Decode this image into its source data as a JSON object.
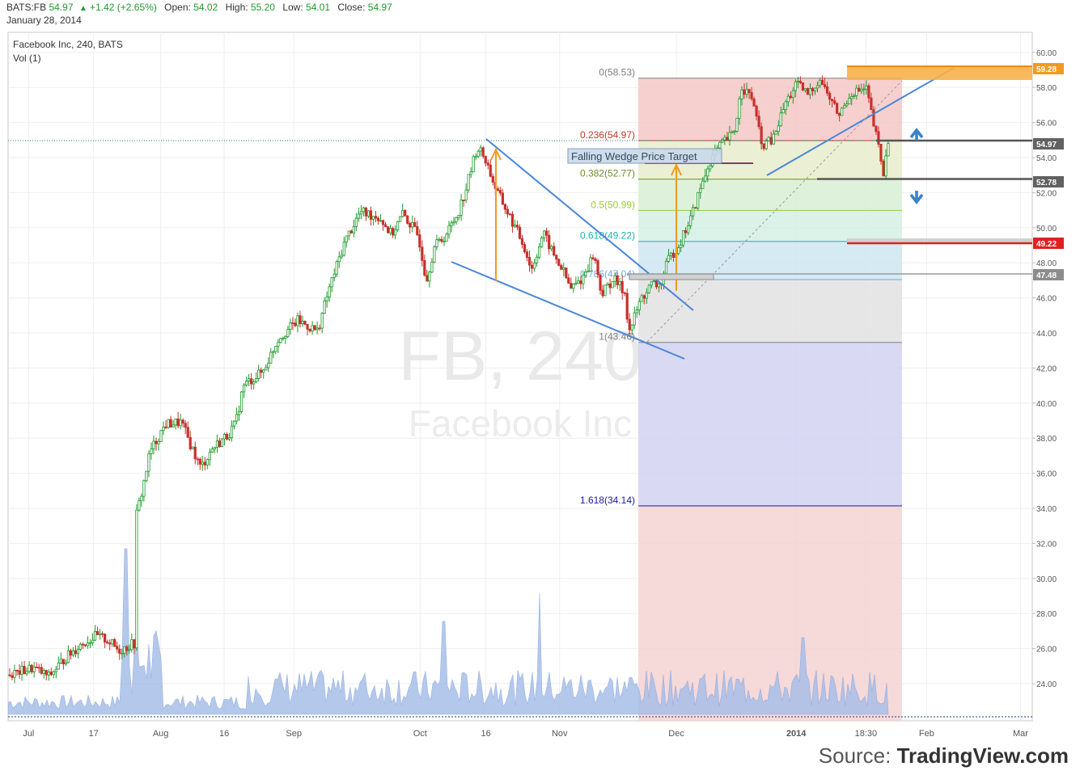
{
  "header": {
    "symbol": "BATS:FB",
    "last": "54.97",
    "change": "+1.42 (+2.65%)",
    "open_label": "Open:",
    "open": "54.02",
    "high_label": "High:",
    "high": "55.20",
    "low_label": "Low:",
    "low": "54.01",
    "close_label": "Close:",
    "close": "54.97",
    "date": "January 28, 2014"
  },
  "colors": {
    "up": "#1d9a2b",
    "down": "#c8302a",
    "trendline": "#4a86d8",
    "arrow": "#f29a1f",
    "volume": "#a8bfe8",
    "price_label_gray": "#616161",
    "price_label_red": "#e02020",
    "price_label_orange": "#f39a1f"
  },
  "source": {
    "prefix": "Source: ",
    "brand": "TradingView.com"
  },
  "chart_data": {
    "type": "candlestick",
    "title": "Facebook Inc, 240, BATS",
    "indicator": "Vol (1)",
    "watermark_symbol": "FB, 240",
    "watermark_name": "Facebook Inc",
    "ylim": [
      22,
      61
    ],
    "y_ticks": [
      "60.00",
      "58.00",
      "56.00",
      "54.00",
      "52.00",
      "50.00",
      "48.00",
      "46.00",
      "44.00",
      "42.00",
      "40.00",
      "38.00",
      "36.00",
      "34.00",
      "32.00",
      "30.00",
      "28.00",
      "26.00",
      "24.00"
    ],
    "x_ticks": [
      {
        "label": "Jul",
        "t": 0.02
      },
      {
        "label": "17",
        "t": 0.0835
      },
      {
        "label": "Aug",
        "t": 0.149
      },
      {
        "label": "16",
        "t": 0.211
      },
      {
        "label": "Sep",
        "t": 0.279
      },
      {
        "label": "Oct",
        "t": 0.4023
      },
      {
        "label": "16",
        "t": 0.4665
      },
      {
        "label": "Nov",
        "t": 0.5385
      },
      {
        "label": "Dec",
        "t": 0.6525
      },
      {
        "label": "2014",
        "t": 0.7695
      },
      {
        "label": "18:30",
        "t": 0.8376
      },
      {
        "label": "Feb",
        "t": 0.8968
      },
      {
        "label": "Mar",
        "t": 0.9885
      }
    ],
    "price_path": [
      [
        0.0,
        24.5
      ],
      [
        0.03,
        24.9
      ],
      [
        0.05,
        24.4
      ],
      [
        0.07,
        25.4
      ],
      [
        0.09,
        26.2
      ],
      [
        0.11,
        26.7
      ],
      [
        0.125,
        26.5
      ],
      [
        0.14,
        25.9
      ],
      [
        0.16,
        26.3
      ],
      [
        0.162,
        33.5
      ],
      [
        0.17,
        35.0
      ],
      [
        0.18,
        37.2
      ],
      [
        0.2,
        38.8
      ],
      [
        0.22,
        38.9
      ],
      [
        0.245,
        36.3
      ],
      [
        0.26,
        37.4
      ],
      [
        0.28,
        38.2
      ],
      [
        0.29,
        38.8
      ],
      [
        0.3,
        41.0
      ],
      [
        0.325,
        41.8
      ],
      [
        0.345,
        43.7
      ],
      [
        0.37,
        44.7
      ],
      [
        0.395,
        44.1
      ],
      [
        0.41,
        46.5
      ],
      [
        0.43,
        49.2
      ],
      [
        0.45,
        50.9
      ],
      [
        0.475,
        50.6
      ],
      [
        0.49,
        49.6
      ],
      [
        0.505,
        50.8
      ],
      [
        0.525,
        49.5
      ],
      [
        0.535,
        47.0
      ],
      [
        0.545,
        48.9
      ],
      [
        0.56,
        49.6
      ],
      [
        0.575,
        50.8
      ],
      [
        0.585,
        52.1
      ],
      [
        0.6,
        54.6
      ],
      [
        0.61,
        54.0
      ],
      [
        0.625,
        52.1
      ],
      [
        0.64,
        50.8
      ],
      [
        0.66,
        49.0
      ],
      [
        0.67,
        47.6
      ],
      [
        0.685,
        49.7
      ],
      [
        0.7,
        48.3
      ],
      [
        0.71,
        47.6
      ],
      [
        0.72,
        46.5
      ],
      [
        0.735,
        47.1
      ],
      [
        0.75,
        48.5
      ],
      [
        0.76,
        46.2
      ],
      [
        0.775,
        47.1
      ],
      [
        0.79,
        46.3
      ],
      [
        0.795,
        44.0
      ],
      [
        0.81,
        45.9
      ],
      [
        0.825,
        46.8
      ],
      [
        0.835,
        46.7
      ],
      [
        0.845,
        48.1
      ],
      [
        0.86,
        49.1
      ],
      [
        0.875,
        50.6
      ],
      [
        0.885,
        52.0
      ],
      [
        0.9,
        53.9
      ],
      [
        0.915,
        54.8
      ],
      [
        0.93,
        55.4
      ],
      [
        0.94,
        58.1
      ],
      [
        0.955,
        57.2
      ],
      [
        0.965,
        54.7
      ],
      [
        0.98,
        55.0
      ],
      [
        0.995,
        57.0
      ],
      [
        1.01,
        58.2
      ],
      [
        1.025,
        57.6
      ],
      [
        1.04,
        58.5
      ],
      [
        1.055,
        57.2
      ],
      [
        1.065,
        56.4
      ],
      [
        1.08,
        57.7
      ],
      [
        1.1,
        57.9
      ],
      [
        1.108,
        56.1
      ],
      [
        1.115,
        54.7
      ],
      [
        1.122,
        53.0
      ],
      [
        1.128,
        54.97
      ]
    ],
    "fib_levels": [
      {
        "ratio": "0",
        "label": "0(58.53)",
        "price": 58.53,
        "fill": "#f4c7c7"
      },
      {
        "ratio": "0.236",
        "label": "0.236(54.97)",
        "price": 54.97,
        "fill": "#e8eccb"
      },
      {
        "ratio": "0.382",
        "label": "0.382(52.77)",
        "price": 52.77,
        "fill": "#d8efd3"
      },
      {
        "ratio": "0.5",
        "label": "0.5(50.99)",
        "price": 50.99,
        "fill": "#d3f0e3"
      },
      {
        "ratio": "0.618",
        "label": "0.618(49.22)",
        "price": 49.22,
        "fill": "#cfe6f1"
      },
      {
        "ratio": "0.786",
        "label": "0.786(47.04)",
        "price": 47.04,
        "fill": "#e2e2e2"
      },
      {
        "ratio": "1",
        "label": "1(43.46)",
        "price": 43.46,
        "fill": "#d2d2f2"
      },
      {
        "ratio": "1.618",
        "label": "1.618(34.14)",
        "price": 34.14,
        "fill": "#f4d2d2"
      }
    ],
    "fib_line_colors": [
      "#808080",
      "#c0392b",
      "#6b8e23",
      "#9acd32",
      "#20b2aa",
      "#6fa8dc",
      "#808080",
      "#1a1aa0"
    ],
    "annotation": "Falling Wedge Price Target",
    "price_labels": [
      {
        "text": "59.28",
        "price": 59.28,
        "color": "#f39a1f"
      },
      {
        "text": "54.97",
        "price": 54.97,
        "color": "#616161"
      },
      {
        "text": "52.78",
        "price": 52.78,
        "color": "#616161"
      },
      {
        "text": "49.22",
        "price": 49.22,
        "color": "#e02020"
      },
      {
        "text": "47.48",
        "price": 47.48,
        "color": "#8c8c8c"
      }
    ]
  }
}
